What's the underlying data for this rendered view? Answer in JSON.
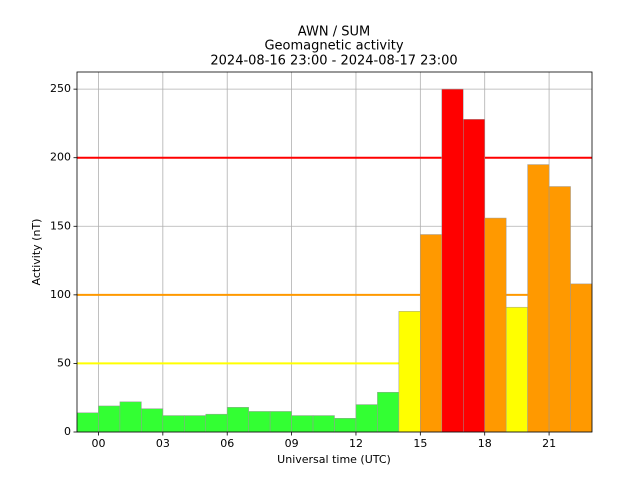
{
  "chart_data": {
    "type": "bar",
    "title": [
      "AWN / SUM",
      "Geomagnetic activity",
      "2024-08-16 23:00 - 2024-08-17 23:00"
    ],
    "xlabel": "Universal time (UTC)",
    "ylabel": "Activity (nT)",
    "x": [
      -1,
      0,
      1,
      2,
      3,
      4,
      5,
      6,
      7,
      8,
      9,
      10,
      11,
      12,
      13,
      14,
      15,
      16,
      17,
      18,
      19,
      20,
      21,
      22
    ],
    "values": [
      14,
      19,
      22,
      17,
      12,
      12,
      13,
      18,
      15,
      15,
      12,
      12,
      10,
      20,
      29,
      88,
      144,
      250,
      228,
      156,
      91,
      195,
      179,
      108
    ],
    "colors": [
      "#33ff33",
      "#33ff33",
      "#33ff33",
      "#33ff33",
      "#33ff33",
      "#33ff33",
      "#33ff33",
      "#33ff33",
      "#33ff33",
      "#33ff33",
      "#33ff33",
      "#33ff33",
      "#33ff33",
      "#33ff33",
      "#33ff33",
      "#ffff00",
      "#ff9900",
      "#ff0000",
      "#ff0000",
      "#ff9900",
      "#ffff00",
      "#ff9900",
      "#ff9900",
      "#ff9900"
    ],
    "thresholds": [
      {
        "value": 50,
        "color": "#ffff00"
      },
      {
        "value": 100,
        "color": "#ff9900"
      },
      {
        "value": 200,
        "color": "#ff0000"
      }
    ],
    "xlim": [
      -1,
      23
    ],
    "xticks": [
      {
        "value": 0,
        "label": "00"
      },
      {
        "value": 3,
        "label": "03"
      },
      {
        "value": 6,
        "label": "06"
      },
      {
        "value": 9,
        "label": "09"
      },
      {
        "value": 12,
        "label": "12"
      },
      {
        "value": 15,
        "label": "15"
      },
      {
        "value": 18,
        "label": "18"
      },
      {
        "value": 21,
        "label": "21"
      }
    ],
    "ylim": [
      0,
      262.5
    ],
    "yticks": [
      0,
      50,
      100,
      150,
      200,
      250
    ],
    "grid": true
  }
}
